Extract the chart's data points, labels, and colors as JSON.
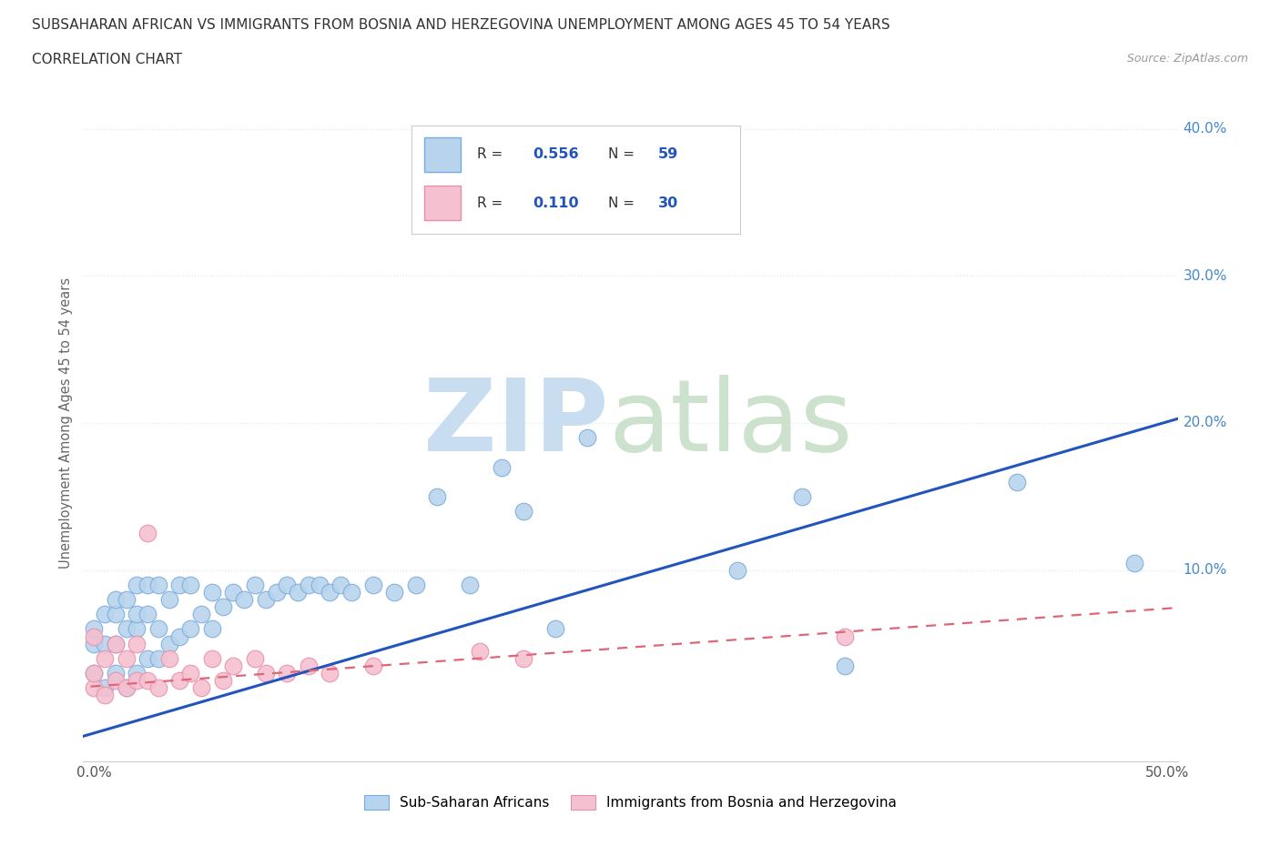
{
  "title_line1": "SUBSAHARAN AFRICAN VS IMMIGRANTS FROM BOSNIA AND HERZEGOVINA UNEMPLOYMENT AMONG AGES 45 TO 54 YEARS",
  "title_line2": "CORRELATION CHART",
  "source_text": "Source: ZipAtlas.com",
  "ylabel": "Unemployment Among Ages 45 to 54 years",
  "xlim": [
    -0.005,
    0.505
  ],
  "ylim": [
    -0.03,
    0.43
  ],
  "xticks": [
    0.0,
    0.1,
    0.2,
    0.3,
    0.4,
    0.5
  ],
  "yticks": [
    0.0,
    0.1,
    0.2,
    0.3,
    0.4
  ],
  "xticklabels": [
    "0.0%",
    "",
    "",
    "",
    "",
    "50.0%"
  ],
  "yticklabels": [
    "",
    "10.0%",
    "20.0%",
    "30.0%",
    "40.0%"
  ],
  "blue_R": "0.556",
  "blue_N": "59",
  "pink_R": "0.110",
  "pink_N": "30",
  "blue_color": "#b8d4ed",
  "blue_edge_color": "#7aabe0",
  "pink_color": "#f5c0d0",
  "pink_edge_color": "#e890a8",
  "blue_line_color": "#2255bb",
  "pink_line_color": "#dd6677",
  "legend_R_color": "#2255bb",
  "watermark_zip_color": "#c8ddf0",
  "watermark_atlas_color": "#c8dfc8",
  "background_color": "#ffffff",
  "grid_color": "#dde8f2",
  "grid_linestyle": "dotted",
  "blue_scatter_x": [
    0.0,
    0.0,
    0.0,
    0.005,
    0.005,
    0.005,
    0.01,
    0.01,
    0.01,
    0.01,
    0.015,
    0.015,
    0.015,
    0.02,
    0.02,
    0.02,
    0.02,
    0.025,
    0.025,
    0.025,
    0.03,
    0.03,
    0.03,
    0.035,
    0.035,
    0.04,
    0.04,
    0.045,
    0.045,
    0.05,
    0.055,
    0.055,
    0.06,
    0.065,
    0.07,
    0.075,
    0.08,
    0.085,
    0.09,
    0.095,
    0.1,
    0.105,
    0.11,
    0.115,
    0.12,
    0.13,
    0.14,
    0.15,
    0.16,
    0.175,
    0.19,
    0.2,
    0.215,
    0.23,
    0.3,
    0.33,
    0.35,
    0.43,
    0.485
  ],
  "blue_scatter_y": [
    0.03,
    0.05,
    0.06,
    0.02,
    0.05,
    0.07,
    0.03,
    0.05,
    0.07,
    0.08,
    0.02,
    0.06,
    0.08,
    0.03,
    0.06,
    0.07,
    0.09,
    0.04,
    0.07,
    0.09,
    0.04,
    0.06,
    0.09,
    0.05,
    0.08,
    0.055,
    0.09,
    0.06,
    0.09,
    0.07,
    0.06,
    0.085,
    0.075,
    0.085,
    0.08,
    0.09,
    0.08,
    0.085,
    0.09,
    0.085,
    0.09,
    0.09,
    0.085,
    0.09,
    0.085,
    0.09,
    0.085,
    0.09,
    0.15,
    0.09,
    0.17,
    0.14,
    0.06,
    0.19,
    0.1,
    0.15,
    0.035,
    0.16,
    0.105
  ],
  "pink_scatter_x": [
    0.0,
    0.0,
    0.0,
    0.005,
    0.005,
    0.01,
    0.01,
    0.015,
    0.015,
    0.02,
    0.02,
    0.025,
    0.025,
    0.03,
    0.035,
    0.04,
    0.045,
    0.05,
    0.055,
    0.06,
    0.065,
    0.075,
    0.08,
    0.09,
    0.1,
    0.11,
    0.13,
    0.18,
    0.2,
    0.35
  ],
  "pink_scatter_y": [
    0.02,
    0.03,
    0.055,
    0.015,
    0.04,
    0.025,
    0.05,
    0.02,
    0.04,
    0.025,
    0.05,
    0.025,
    0.125,
    0.02,
    0.04,
    0.025,
    0.03,
    0.02,
    0.04,
    0.025,
    0.035,
    0.04,
    0.03,
    0.03,
    0.035,
    0.03,
    0.035,
    0.045,
    0.04,
    0.055
  ],
  "blue_line_x0": -0.01,
  "blue_line_x1": 0.51,
  "blue_line_y0": -0.015,
  "blue_line_y1": 0.205,
  "pink_line_x0": -0.01,
  "pink_line_x1": 0.51,
  "pink_line_y0": 0.02,
  "pink_line_y1": 0.075
}
